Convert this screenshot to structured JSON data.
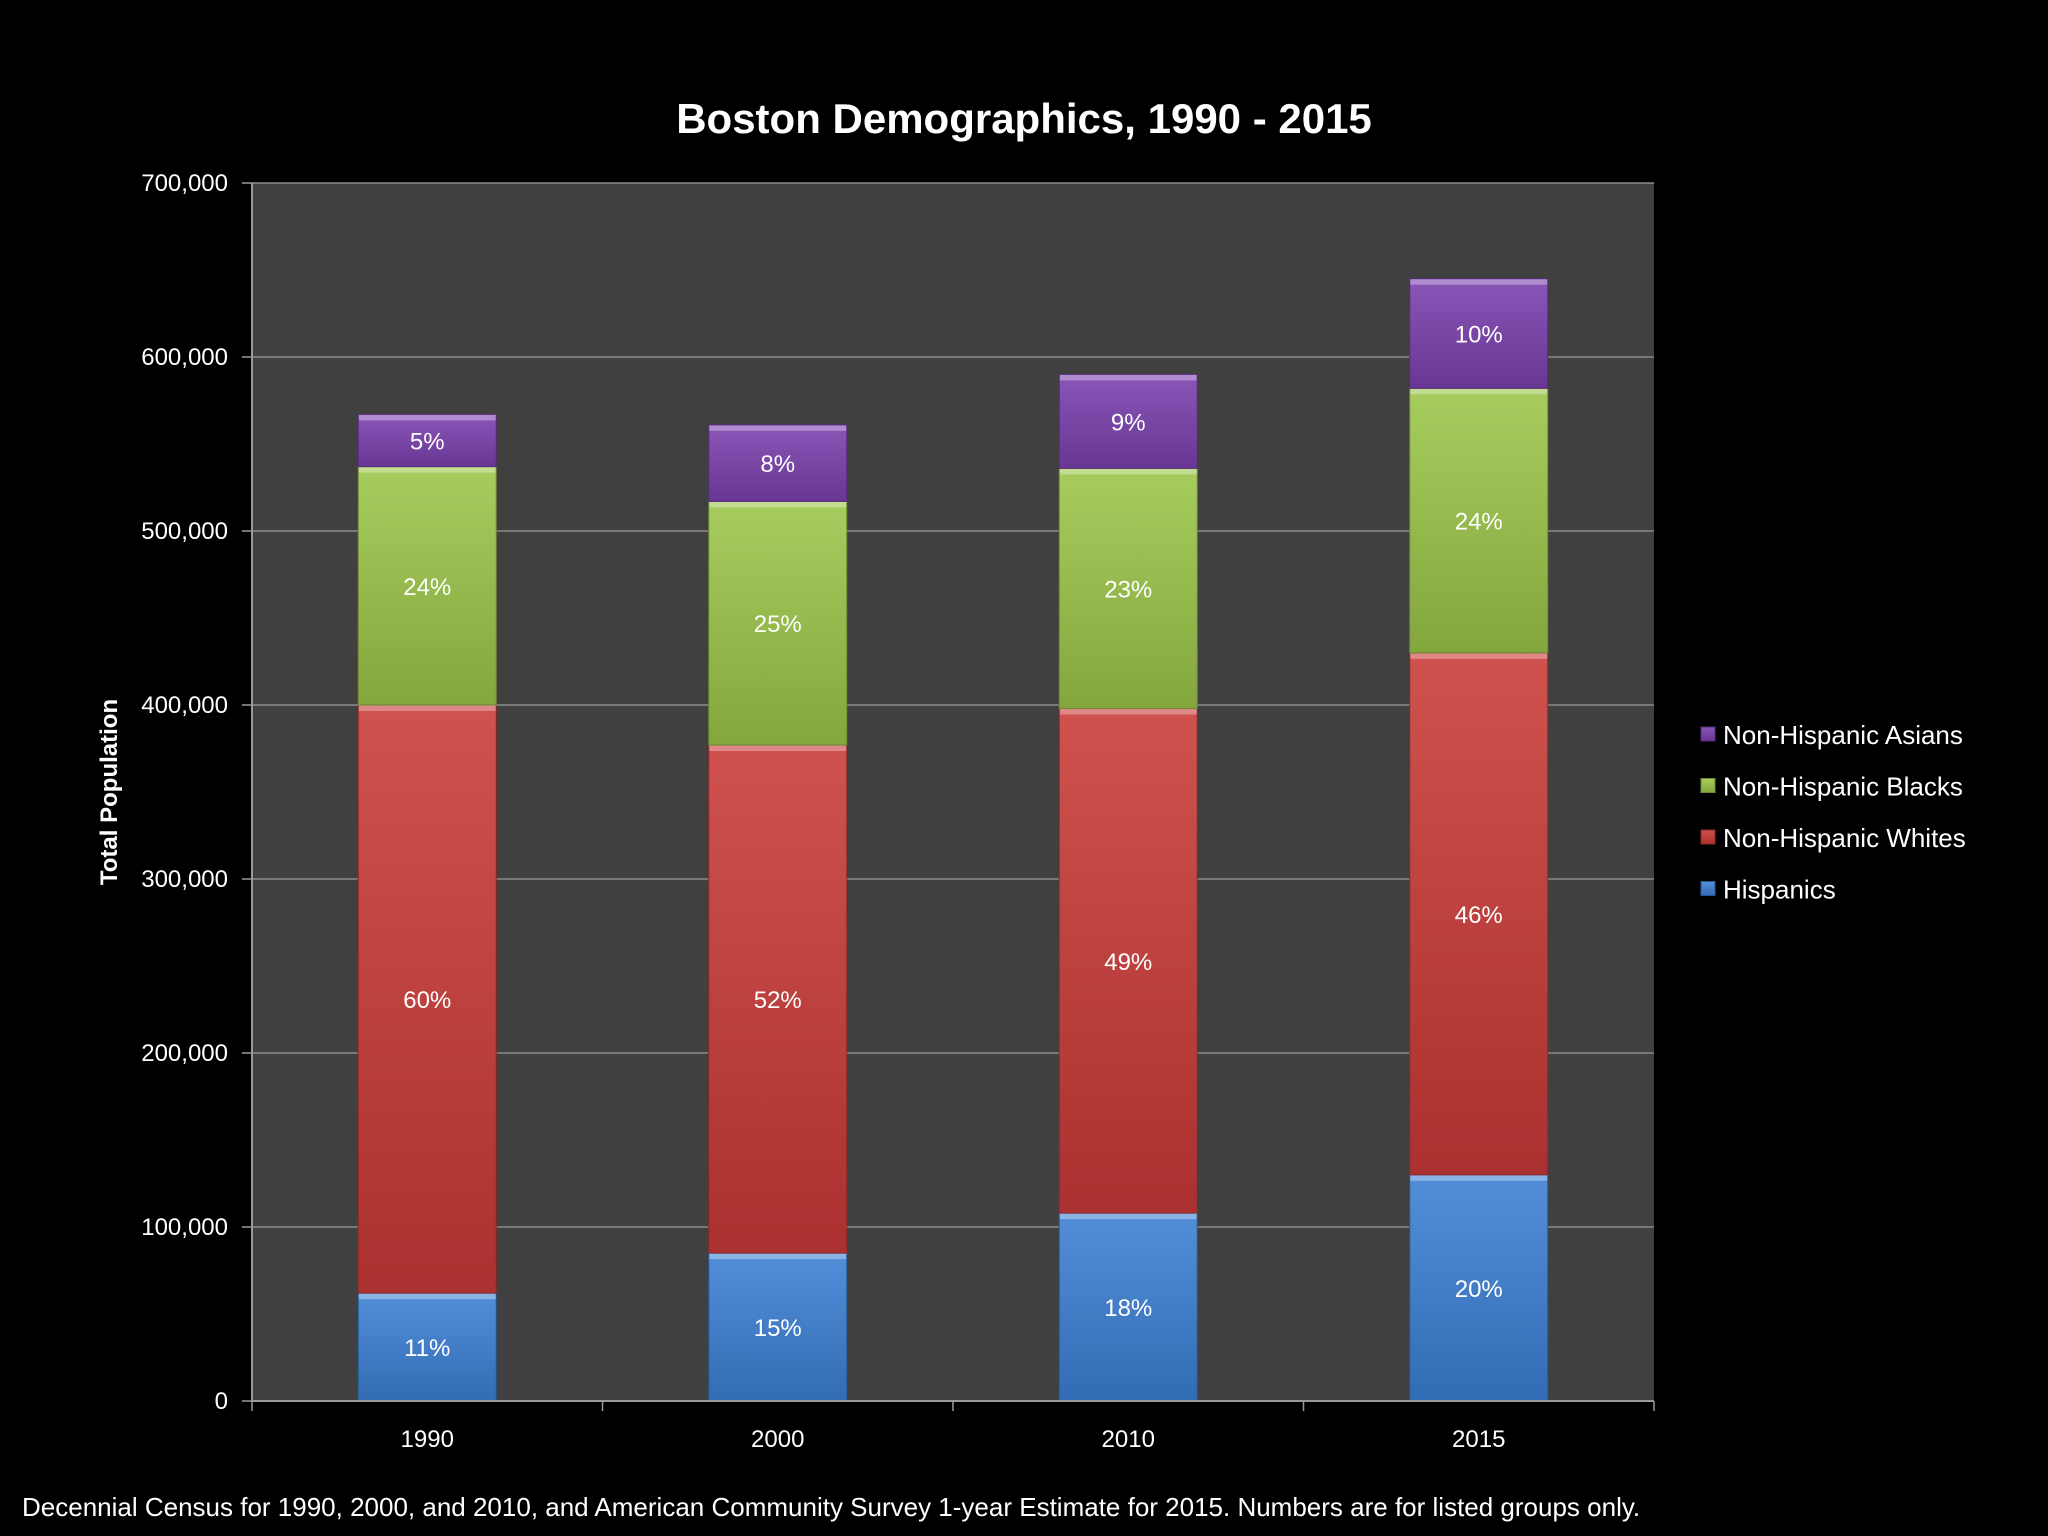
{
  "chart_data": {
    "type": "bar",
    "stacked": true,
    "title": "Boston Demographics, 1990 - 2015",
    "ylabel": "Total Population",
    "xlabel": "",
    "ylim": [
      0,
      700000
    ],
    "yticks": [
      0,
      100000,
      200000,
      300000,
      400000,
      500000,
      600000,
      700000
    ],
    "ytick_labels": [
      "0",
      "100,000",
      "200,000",
      "300,000",
      "400,000",
      "500,000",
      "600,000",
      "700,000"
    ],
    "categories": [
      "1990",
      "2000",
      "2010",
      "2015"
    ],
    "grid": true,
    "legend_position": "right",
    "plot_background": "#404040",
    "series": [
      {
        "name": "Hispanics",
        "color": "#3b7fd4",
        "values": [
          62000,
          85000,
          108000,
          130000
        ],
        "labels": [
          "11%",
          "15%",
          "18%",
          "20%"
        ]
      },
      {
        "name": "Non-Hispanic Whites",
        "color": "#c83a37",
        "values": [
          338000,
          292000,
          290000,
          300000
        ],
        "labels": [
          "60%",
          "52%",
          "49%",
          "46%"
        ]
      },
      {
        "name": "Non-Hispanic Blacks",
        "color": "#9bc548",
        "values": [
          137000,
          140000,
          138000,
          152000
        ],
        "labels": [
          "24%",
          "25%",
          "23%",
          "24%"
        ]
      },
      {
        "name": "Non-Hispanic Asians",
        "color": "#7a3fae",
        "values": [
          30000,
          44000,
          54000,
          63000
        ],
        "labels": [
          "5%",
          "8%",
          "9%",
          "10%"
        ]
      }
    ],
    "footnote": "Decennial Census for 1990, 2000, and 2010, and American Community Survey 1-year Estimate for 2015. Numbers are for listed groups only."
  }
}
